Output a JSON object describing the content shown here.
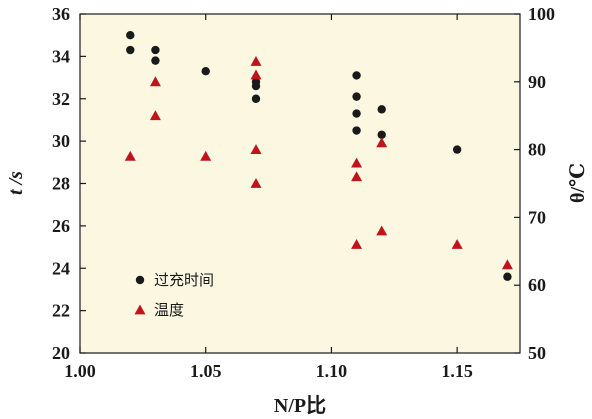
{
  "chart_data": {
    "type": "scatter",
    "xlabel": "N/P比",
    "ylabel_left": "t /s",
    "ylabel_right": "θ/℃",
    "xlim": [
      1.0,
      1.175
    ],
    "ylim_left": [
      20,
      36
    ],
    "ylim_right": [
      50,
      100
    ],
    "xticks": [
      "1.00",
      "1.05",
      "1.10",
      "1.15"
    ],
    "yticks_left": [
      "20",
      "22",
      "24",
      "26",
      "28",
      "30",
      "32",
      "34",
      "36"
    ],
    "yticks_right": [
      "50",
      "60",
      "70",
      "80",
      "90",
      "100"
    ],
    "grid": false,
    "legend_position": "bottom-left",
    "plot_background": "#fbf7e1",
    "series": [
      {
        "name": "过充时间",
        "axis": "left",
        "marker": "circle",
        "color": "#1a1a1a",
        "points": [
          [
            1.02,
            35.0
          ],
          [
            1.02,
            34.3
          ],
          [
            1.03,
            34.3
          ],
          [
            1.03,
            33.8
          ],
          [
            1.05,
            33.3
          ],
          [
            1.07,
            32.8
          ],
          [
            1.07,
            32.6
          ],
          [
            1.07,
            32.0
          ],
          [
            1.11,
            33.1
          ],
          [
            1.11,
            32.1
          ],
          [
            1.11,
            31.3
          ],
          [
            1.11,
            30.5
          ],
          [
            1.12,
            31.5
          ],
          [
            1.12,
            30.3
          ],
          [
            1.15,
            29.6
          ],
          [
            1.17,
            23.6
          ]
        ]
      },
      {
        "name": "温度",
        "axis": "right",
        "marker": "triangle",
        "color": "#c0141c",
        "points": [
          [
            1.02,
            79
          ],
          [
            1.03,
            90
          ],
          [
            1.03,
            85
          ],
          [
            1.05,
            79
          ],
          [
            1.07,
            93
          ],
          [
            1.07,
            91
          ],
          [
            1.07,
            80
          ],
          [
            1.07,
            75
          ],
          [
            1.11,
            78
          ],
          [
            1.11,
            76
          ],
          [
            1.11,
            66
          ],
          [
            1.12,
            81
          ],
          [
            1.12,
            68
          ],
          [
            1.15,
            66
          ],
          [
            1.17,
            63
          ]
        ]
      }
    ]
  }
}
